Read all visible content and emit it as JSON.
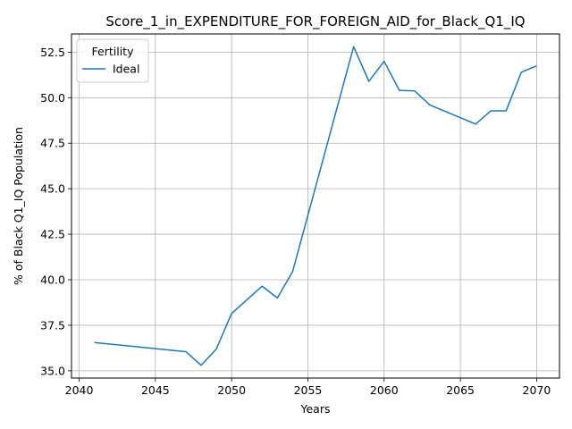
{
  "chart_data": {
    "type": "line",
    "title": "Score_1_in_EXPENDITURE_FOR_FOREIGN_AID_for_Black_Q1_IQ",
    "xlabel": "Years",
    "ylabel": "% of Black Q1_IQ Population",
    "xlim": [
      2039.5,
      2071.5
    ],
    "ylim": [
      34.6,
      53.5
    ],
    "xticks": [
      2040,
      2045,
      2050,
      2055,
      2060,
      2065,
      2070
    ],
    "yticks": [
      35.0,
      37.5,
      40.0,
      42.5,
      45.0,
      47.5,
      50.0,
      52.5
    ],
    "grid": true,
    "legend": {
      "title": "Fertility",
      "placement": "top-left"
    },
    "series": [
      {
        "name": "Ideal",
        "color": "#1f77b4",
        "x": [
          2041,
          2047,
          2048,
          2049,
          2050,
          2052,
          2053,
          2054,
          2058,
          2059,
          2060,
          2061,
          2062,
          2063,
          2066,
          2067,
          2068,
          2069,
          2070
        ],
        "y": [
          36.55,
          36.05,
          35.3,
          36.2,
          38.15,
          39.65,
          39.0,
          40.45,
          52.8,
          50.9,
          52.0,
          50.4,
          50.37,
          49.6,
          48.55,
          49.28,
          49.28,
          51.4,
          51.75
        ]
      }
    ]
  }
}
